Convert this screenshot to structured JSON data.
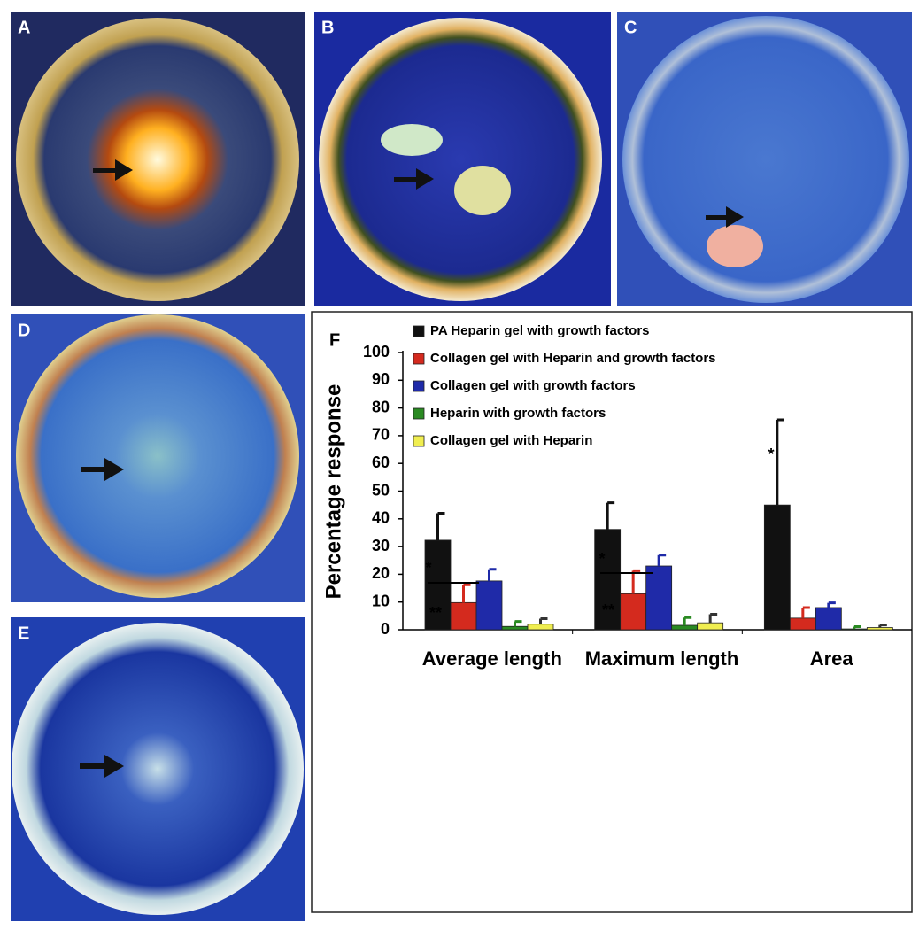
{
  "panels": [
    "A",
    "B",
    "C",
    "D",
    "E"
  ],
  "chart_data": {
    "type": "bar",
    "panel_label": "F",
    "ylabel": "Percentage response",
    "categories": [
      "Average length",
      "Maximum length",
      "Area"
    ],
    "series": [
      {
        "name": "PA Heparin gel with growth factors",
        "color": "#111111",
        "values": [
          32.3,
          36.2,
          45
        ],
        "errors": [
          9.7,
          9.6,
          30.7
        ]
      },
      {
        "name": "Collagen gel with Heparin and growth factors",
        "color": "#d42a1e",
        "values": [
          9.8,
          13,
          4.2
        ],
        "errors": [
          6.4,
          8.3,
          3.8
        ]
      },
      {
        "name": "Collagen gel with growth factors",
        "color": "#1f2aa8",
        "values": [
          17.6,
          23,
          8
        ],
        "errors": [
          4.2,
          3.9,
          1.7
        ]
      },
      {
        "name": "Heparin with growth factors",
        "color": "#2a8a22",
        "values": [
          1.2,
          1.6,
          0.3
        ],
        "errors": [
          1.8,
          2.8,
          0.8
        ]
      },
      {
        "name": "Collagen gel with Heparin",
        "color": "#f0ee50",
        "values": [
          2,
          2.5,
          0.8
        ],
        "errors": [
          2,
          3.1,
          0.9
        ]
      }
    ],
    "annotations": [
      "**",
      "*",
      "**",
      "*",
      "*"
    ],
    "ylim": [
      0,
      100
    ],
    "yticks": [
      0,
      10,
      20,
      30,
      40,
      50,
      60,
      70,
      80,
      90,
      100
    ]
  }
}
